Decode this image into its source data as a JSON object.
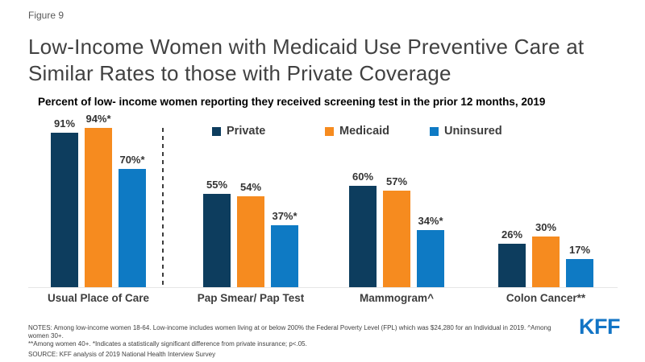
{
  "figure_label": "Figure 9",
  "title": "Low-Income Women with Medicaid Use Preventive Care at Similar Rates to those with Private Coverage",
  "subtitle": "Percent of low- income women reporting they received screening test in the prior 12 months, 2019",
  "colors": {
    "private": "#0d3d5e",
    "medicaid": "#f68b1f",
    "uninsured": "#0e7ac4",
    "kff_blue": "#1274c5",
    "axis_line": "#e6e6e6",
    "divider": "#3d3d3d"
  },
  "legend": [
    "Private",
    "Medicaid",
    "Uninsured"
  ],
  "chart_data": {
    "type": "bar",
    "categories": [
      "Usual Place of Care",
      "Pap Smear/ Pap Test",
      "Mammogram^",
      "Colon Cancer**"
    ],
    "series": [
      {
        "name": "Private",
        "values": [
          91,
          55,
          60,
          26
        ],
        "labels": [
          "91%",
          "55%",
          "60%",
          "26%"
        ]
      },
      {
        "name": "Medicaid",
        "values": [
          94,
          54,
          57,
          30
        ],
        "labels": [
          "94%*",
          "54%",
          "57%",
          "30%"
        ]
      },
      {
        "name": "Uninsured",
        "values": [
          70,
          37,
          34,
          17
        ],
        "labels": [
          "70%*",
          "37%*",
          "34%*",
          "17%"
        ]
      }
    ],
    "title": "Percent of low- income women reporting they received screening test in the prior 12 months, 2019",
    "xlabel": "",
    "ylabel": "",
    "ylim": [
      0,
      100
    ],
    "grid": false,
    "legend_position": "top",
    "value_labels_shown": true,
    "separator": "dashed vertical line between first group and remaining groups"
  },
  "notes": {
    "line1": "NOTES: Among low-income women 18-64. Low-income includes women living at or below 200% the Federal Poverty Level (FPL) which was $24,280 for an Individual in 2019.  ^Among women 30+.",
    "line2": "**Among women 40+.  *Indicates a statistically significant difference from private insurance; p<.05.",
    "line3": "SOURCE: KFF analysis of 2019 National Health Interview Survey"
  },
  "logo": "KFF"
}
